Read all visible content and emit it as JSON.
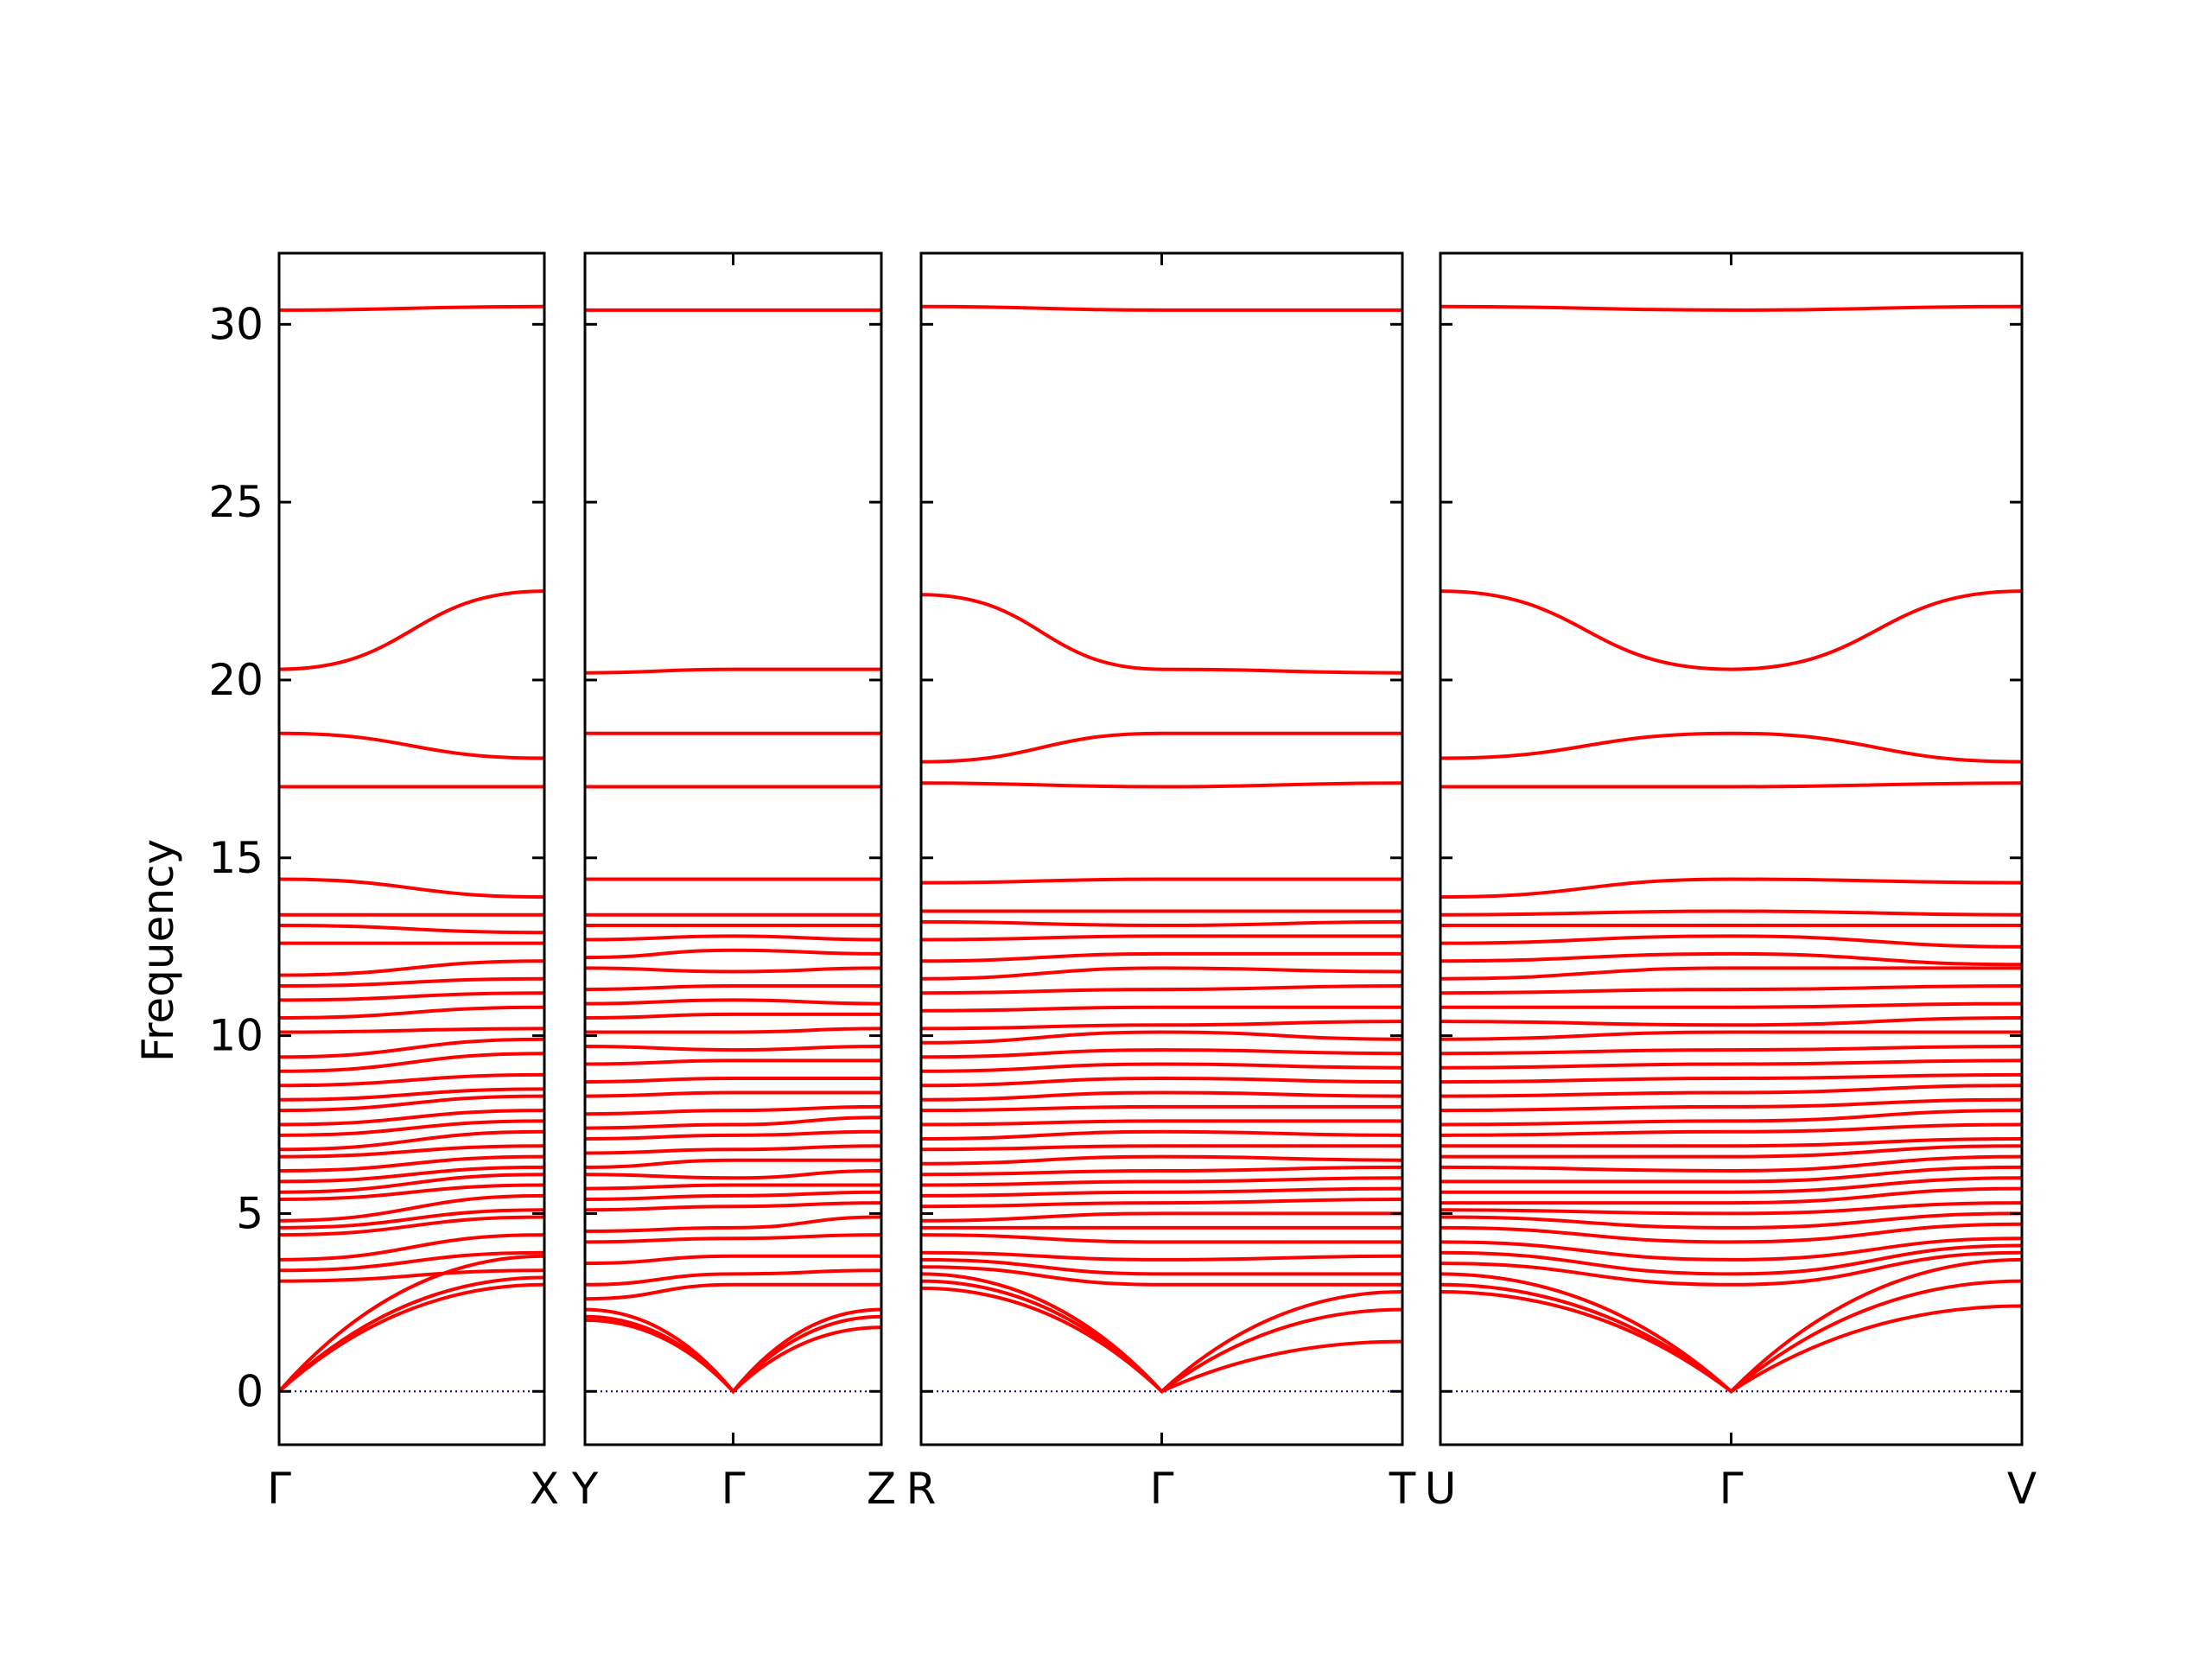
{
  "chart_data": {
    "type": "line",
    "ylabel": "Frequency",
    "ylim": [
      -1.5,
      32
    ],
    "yticks": [
      0,
      5,
      10,
      15,
      20,
      25,
      30
    ],
    "grid": false,
    "band_color": "#ff0000",
    "zero_line_color": "#00008b",
    "panels": [
      {
        "x_labels": [
          "Γ",
          "X"
        ],
        "bands": [
          [
            0,
            3.0
          ],
          [
            0,
            3.2
          ],
          [
            0,
            3.8
          ],
          [
            3.1,
            3.4
          ],
          [
            3.4,
            3.9
          ],
          [
            3.7,
            4.4
          ],
          [
            4.4,
            4.9
          ],
          [
            4.6,
            5.1
          ],
          [
            4.8,
            5.5
          ],
          [
            5.4,
            5.8
          ],
          [
            5.6,
            6.1
          ],
          [
            5.9,
            6.3
          ],
          [
            6.2,
            6.6
          ],
          [
            6.6,
            6.9
          ],
          [
            6.8,
            7.3
          ],
          [
            7.2,
            7.6
          ],
          [
            7.5,
            7.9
          ],
          [
            7.9,
            8.3
          ],
          [
            8.2,
            8.5
          ],
          [
            8.6,
            8.9
          ],
          [
            9.0,
            9.5
          ],
          [
            9.4,
            9.9
          ],
          [
            10.1,
            10.2
          ],
          [
            10.5,
            10.8
          ],
          [
            11.0,
            11.2
          ],
          [
            11.4,
            11.6
          ],
          [
            11.7,
            12.1
          ],
          [
            12.6,
            12.6
          ],
          [
            13.1,
            12.9
          ],
          [
            13.4,
            13.4
          ],
          [
            14.4,
            13.9
          ],
          [
            17.0,
            17.0
          ],
          [
            18.5,
            17.8
          ],
          [
            20.3,
            22.5
          ],
          [
            30.4,
            30.5
          ]
        ]
      },
      {
        "x_labels": [
          "Y",
          "Γ",
          "Z"
        ],
        "bands": [
          [
            2.0,
            0,
            1.8
          ],
          [
            2.1,
            0,
            2.1
          ],
          [
            2.3,
            0,
            2.3
          ],
          [
            2.6,
            3.0,
            3.0
          ],
          [
            3.0,
            3.3,
            3.4
          ],
          [
            3.6,
            3.8,
            3.8
          ],
          [
            4.2,
            4.3,
            4.4
          ],
          [
            4.5,
            4.6,
            4.9
          ],
          [
            5.1,
            5.2,
            5.3
          ],
          [
            5.4,
            5.5,
            5.6
          ],
          [
            5.7,
            5.8,
            5.8
          ],
          [
            6.1,
            6.0,
            6.2
          ],
          [
            6.3,
            6.5,
            6.5
          ],
          [
            6.7,
            6.8,
            6.9
          ],
          [
            7.1,
            7.2,
            7.3
          ],
          [
            7.4,
            7.5,
            7.7
          ],
          [
            7.8,
            7.9,
            8.0
          ],
          [
            8.3,
            8.4,
            8.4
          ],
          [
            8.7,
            8.8,
            8.8
          ],
          [
            9.2,
            9.3,
            9.3
          ],
          [
            9.7,
            9.6,
            9.7
          ],
          [
            10.1,
            10.1,
            10.2
          ],
          [
            10.5,
            10.6,
            10.6
          ],
          [
            10.9,
            11.0,
            10.9
          ],
          [
            11.3,
            11.4,
            11.4
          ],
          [
            11.9,
            11.8,
            11.9
          ],
          [
            12.2,
            12.4,
            12.3
          ],
          [
            12.7,
            12.8,
            12.7
          ],
          [
            13.1,
            13.1,
            13.1
          ],
          [
            13.4,
            13.4,
            13.4
          ],
          [
            14.4,
            14.4,
            14.4
          ],
          [
            17.0,
            17.0,
            17.0
          ],
          [
            18.5,
            18.5,
            18.5
          ],
          [
            20.2,
            20.3,
            20.3
          ],
          [
            30.4,
            30.4,
            30.4
          ]
        ]
      },
      {
        "x_labels": [
          "R",
          "Γ",
          "T"
        ],
        "bands": [
          [
            2.9,
            0,
            1.4
          ],
          [
            3.1,
            0,
            2.3
          ],
          [
            3.3,
            0,
            2.8
          ],
          [
            3.5,
            3.0,
            3.0
          ],
          [
            3.7,
            3.3,
            3.3
          ],
          [
            3.9,
            3.7,
            3.8
          ],
          [
            4.4,
            4.2,
            4.2
          ],
          [
            4.6,
            4.6,
            4.6
          ],
          [
            4.8,
            5.0,
            5.0
          ],
          [
            5.2,
            5.3,
            5.4
          ],
          [
            5.5,
            5.6,
            5.7
          ],
          [
            5.8,
            5.9,
            6.0
          ],
          [
            6.1,
            6.2,
            6.3
          ],
          [
            6.4,
            6.6,
            6.5
          ],
          [
            6.8,
            6.9,
            6.9
          ],
          [
            7.1,
            7.3,
            7.2
          ],
          [
            7.5,
            7.6,
            7.6
          ],
          [
            7.9,
            8.0,
            8.0
          ],
          [
            8.2,
            8.4,
            8.3
          ],
          [
            8.6,
            8.8,
            8.7
          ],
          [
            9.0,
            9.2,
            9.1
          ],
          [
            9.4,
            9.6,
            9.5
          ],
          [
            9.8,
            10.1,
            9.9
          ],
          [
            10.2,
            10.3,
            10.4
          ],
          [
            10.7,
            10.8,
            10.8
          ],
          [
            11.2,
            11.3,
            11.4
          ],
          [
            11.6,
            11.9,
            11.8
          ],
          [
            12.1,
            12.3,
            12.3
          ],
          [
            12.7,
            12.8,
            12.8
          ],
          [
            13.2,
            13.1,
            13.2
          ],
          [
            13.5,
            13.5,
            13.5
          ],
          [
            14.3,
            14.4,
            14.4
          ],
          [
            17.1,
            17.0,
            17.1
          ],
          [
            17.7,
            18.5,
            18.5
          ],
          [
            22.4,
            20.3,
            20.2
          ],
          [
            30.5,
            30.4,
            30.4
          ]
        ]
      },
      {
        "x_labels": [
          "U",
          "Γ",
          "V"
        ],
        "bands": [
          [
            2.8,
            0,
            2.4
          ],
          [
            3.0,
            0,
            3.1
          ],
          [
            3.3,
            0,
            3.7
          ],
          [
            3.6,
            3.0,
            3.9
          ],
          [
            3.9,
            3.3,
            4.1
          ],
          [
            4.2,
            3.7,
            4.3
          ],
          [
            4.6,
            4.2,
            4.7
          ],
          [
            4.9,
            4.6,
            5.0
          ],
          [
            5.1,
            5.0,
            5.3
          ],
          [
            5.3,
            5.3,
            5.7
          ],
          [
            5.6,
            5.6,
            6.0
          ],
          [
            5.9,
            5.9,
            6.3
          ],
          [
            6.3,
            6.2,
            6.6
          ],
          [
            6.6,
            6.6,
            6.9
          ],
          [
            6.9,
            6.9,
            7.1
          ],
          [
            7.2,
            7.3,
            7.5
          ],
          [
            7.5,
            7.6,
            7.9
          ],
          [
            7.9,
            8.0,
            8.2
          ],
          [
            8.3,
            8.4,
            8.6
          ],
          [
            8.7,
            8.8,
            8.9
          ],
          [
            9.1,
            9.2,
            9.3
          ],
          [
            9.5,
            9.6,
            9.7
          ],
          [
            9.9,
            10.1,
            10.1
          ],
          [
            10.4,
            10.3,
            10.5
          ],
          [
            10.8,
            10.8,
            10.9
          ],
          [
            11.2,
            11.3,
            11.4
          ],
          [
            11.6,
            11.9,
            11.9
          ],
          [
            12.1,
            12.3,
            12.0
          ],
          [
            12.6,
            12.8,
            12.5
          ],
          [
            13.1,
            13.1,
            13.1
          ],
          [
            13.4,
            13.5,
            13.4
          ],
          [
            13.9,
            14.4,
            14.3
          ],
          [
            17.0,
            17.0,
            17.1
          ],
          [
            17.8,
            18.5,
            17.7
          ],
          [
            22.5,
            20.3,
            22.5
          ],
          [
            30.5,
            30.4,
            30.5
          ]
        ]
      }
    ]
  }
}
